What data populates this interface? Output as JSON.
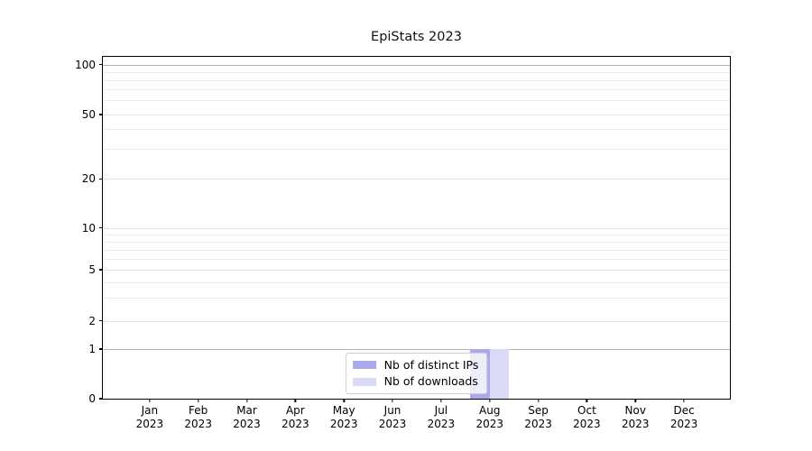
{
  "figure": {
    "title": "EpiStats 2023"
  },
  "chart_data": {
    "type": "bar",
    "title": "EpiStats 2023",
    "categories": [
      "Jan 2023",
      "Feb 2023",
      "Mar 2023",
      "Apr 2023",
      "May 2023",
      "Jun 2023",
      "Jul 2023",
      "Aug 2023",
      "Sep 2023",
      "Oct 2023",
      "Nov 2023",
      "Dec 2023"
    ],
    "series": [
      {
        "name": "Nb of distinct IPs",
        "color": "#a9a9ec",
        "values": [
          0,
          0,
          0,
          0,
          0,
          0,
          0,
          1,
          0,
          0,
          0,
          0
        ]
      },
      {
        "name": "Nb of downloads",
        "color": "#dadaf6",
        "values": [
          0,
          0,
          0,
          0,
          0,
          0,
          0,
          1,
          0,
          0,
          0,
          0
        ]
      }
    ],
    "y_axis": {
      "scale": "symlog",
      "tick_labels": [
        "100",
        "50",
        "20",
        "10",
        "5",
        "2",
        "1",
        "0"
      ],
      "ticks": [
        100,
        50,
        20,
        10,
        5,
        2,
        1,
        0
      ],
      "ylim": [
        0,
        115
      ],
      "minor_gridline_values": [
        90,
        80,
        70,
        60,
        40,
        30,
        9,
        8,
        7,
        6,
        4,
        3
      ]
    },
    "x_axis": {
      "ticks_are_months": true
    },
    "legend": {
      "position": "lower center",
      "entries": [
        "Nb of distinct IPs",
        "Nb of downloads"
      ]
    },
    "grid": "horizontal",
    "background_color": "#ffffff"
  }
}
